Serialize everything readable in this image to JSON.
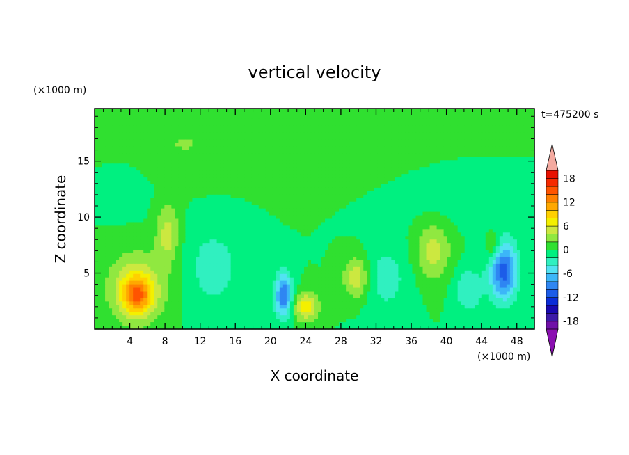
{
  "chart_data": {
    "type": "heatmap",
    "title": "vertical velocity",
    "xlabel": "X coordinate",
    "ylabel": "Z coordinate",
    "x_unit_label": "(×1000 m)",
    "y_unit_label": "(×1000 m)",
    "time_label": "t=475200 s",
    "xlim": [
      0,
      50
    ],
    "ylim": [
      0,
      19.7
    ],
    "x_ticks": [
      4,
      8,
      12,
      16,
      20,
      24,
      28,
      32,
      36,
      40,
      44,
      48
    ],
    "x_tick_labels": [
      "4",
      "8",
      "12",
      "16",
      "20",
      "24",
      "28",
      "32",
      "36",
      "40",
      "44",
      "48"
    ],
    "y_ticks": [
      5,
      10,
      15
    ],
    "y_tick_labels": [
      "5",
      "10",
      "15"
    ],
    "background_value": 0,
    "features": [
      {
        "x": 4.8,
        "z": 3.6,
        "sx": 3.2,
        "sz": 3.0,
        "amp": 7
      },
      {
        "x": 4.8,
        "z": 3.0,
        "sx": 1.5,
        "sz": 1.5,
        "amp": 9
      },
      {
        "x": 8.3,
        "z": 8.5,
        "sx": 1.3,
        "sz": 2.6,
        "amp": 5
      },
      {
        "x": 13.5,
        "z": 5.5,
        "sx": 3.2,
        "sz": 3.8,
        "amp": -3
      },
      {
        "x": 21.5,
        "z": 3.0,
        "sx": 1.0,
        "sz": 2.0,
        "amp": -10
      },
      {
        "x": 24.0,
        "z": 2.0,
        "sx": 1.5,
        "sz": 1.3,
        "amp": 7
      },
      {
        "x": 29.8,
        "z": 4.6,
        "sx": 1.5,
        "sz": 1.9,
        "amp": 6
      },
      {
        "x": 33.0,
        "z": 4.5,
        "sx": 2.8,
        "sz": 3.0,
        "amp": -3
      },
      {
        "x": 38.5,
        "z": 7.0,
        "sx": 2.0,
        "sz": 2.6,
        "amp": 5
      },
      {
        "x": 42.5,
        "z": 3.5,
        "sx": 1.6,
        "sz": 2.0,
        "amp": -4
      },
      {
        "x": 46.5,
        "z": 5.2,
        "sx": 1.6,
        "sz": 2.6,
        "amp": -11
      },
      {
        "x": 45.3,
        "z": 7.3,
        "sx": 0.8,
        "sz": 1.3,
        "amp": 4
      },
      {
        "x": 10.0,
        "z": 16.5,
        "sx": 8.0,
        "sz": 3.0,
        "amp": 2
      },
      {
        "x": 30.0,
        "z": 17.0,
        "sx": 10.0,
        "sz": 3.0,
        "amp": 1.8
      },
      {
        "x": 3.5,
        "z": 13.0,
        "sx": 3.0,
        "sz": 2.5,
        "amp": -1.2
      },
      {
        "x": 40.0,
        "z": 12.0,
        "sx": 6.0,
        "sz": 3.0,
        "amp": -1.2
      }
    ],
    "colorbar": {
      "levels": [
        -20,
        -18,
        -16,
        -14,
        -12,
        -10,
        -8,
        -6,
        -4,
        -2,
        0,
        2,
        4,
        6,
        8,
        10,
        12,
        14,
        16,
        18,
        20
      ],
      "colors": [
        "#7010a8",
        "#3c1aa8",
        "#1808b0",
        "#0a2cd8",
        "#1c5ce8",
        "#2f86f2",
        "#3cb6f8",
        "#52e2f2",
        "#30f0c0",
        "#00f080",
        "#30e030",
        "#90e840",
        "#cce840",
        "#f4f000",
        "#ffd000",
        "#ffa800",
        "#ff8000",
        "#ff5400",
        "#f62a00",
        "#e81000"
      ],
      "under_color": "#8a10b0",
      "over_color": "#f4aaa0",
      "tick_values": [
        18,
        12,
        6,
        0,
        -6,
        -12,
        -18
      ],
      "tick_labels": [
        "18",
        "12",
        "6",
        "0",
        "-6",
        "-12",
        "-18"
      ]
    }
  }
}
